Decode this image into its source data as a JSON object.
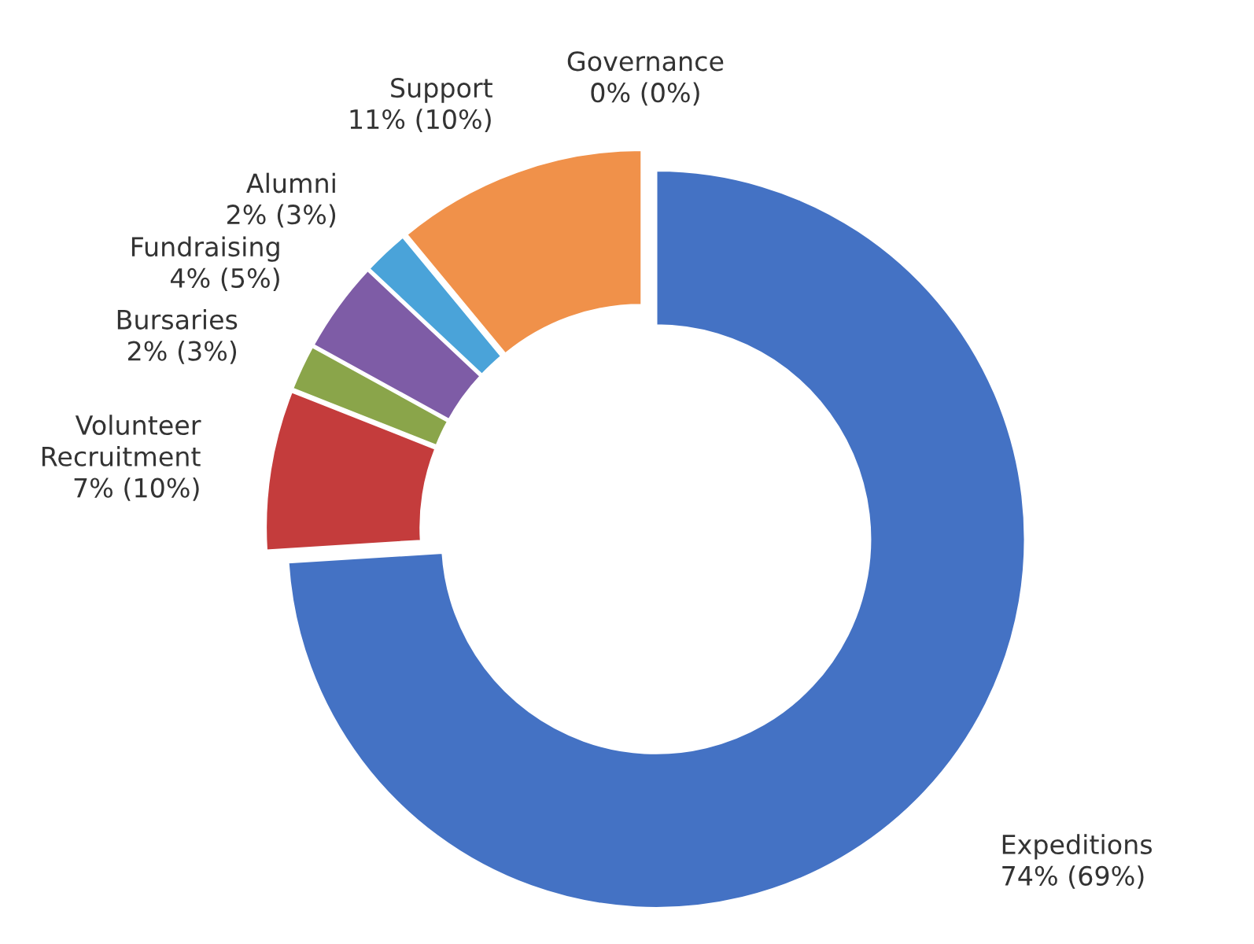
{
  "chart_data": {
    "type": "donut",
    "categories": [
      "Expeditions",
      "Volunteer Recruitment",
      "Bursaries",
      "Fundraising",
      "Alumni",
      "Support",
      "Governance"
    ],
    "values": [
      74,
      7,
      2,
      4,
      2,
      11,
      0
    ],
    "value_labels": [
      "74% (69%)",
      "7% (10%)",
      "2% (3%)",
      "4% (5%)",
      "2% (3%)",
      "11% (10%)",
      "0% (0%)"
    ],
    "colors": [
      "#4472c4",
      "#c43c3c",
      "#8aa54a",
      "#7e5ca6",
      "#4aa3d9",
      "#f0914a",
      "#3b8fd0"
    ],
    "legend": false
  }
}
